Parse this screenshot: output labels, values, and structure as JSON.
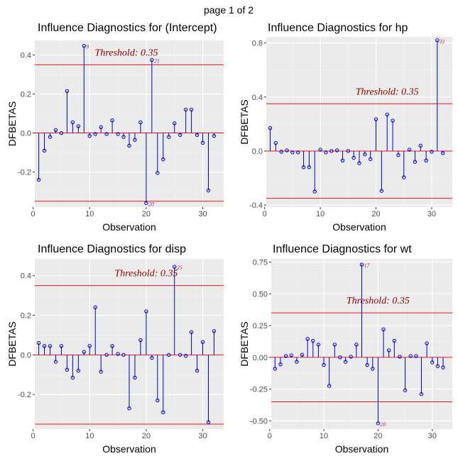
{
  "page_label": "page 1 of 2",
  "chart_data": [
    {
      "type": "lollipop",
      "title": "Influence Diagnostics for (Intercept)",
      "xlabel": "Observation",
      "ylabel": "DFBETAS",
      "xlim": [
        0.3,
        33.7
      ],
      "ylim": [
        -0.38,
        0.475
      ],
      "xticks": [
        0,
        10,
        20,
        30
      ],
      "yticks": [
        -0.2,
        0.0,
        0.2,
        0.4
      ],
      "ytick_labels": [
        "-0.2",
        "0.0",
        "0.2",
        "0.4"
      ],
      "threshold": 0.35,
      "threshold_label": "Threshold: 0.35",
      "threshold_label_x": 16.5,
      "values": [
        -0.24,
        -0.09,
        -0.02,
        0.015,
        0.0,
        0.215,
        0.055,
        0.035,
        0.447,
        -0.015,
        -0.005,
        0.03,
        -0.005,
        0.065,
        -0.005,
        -0.02,
        -0.065,
        -0.035,
        0.055,
        -0.36,
        0.375,
        -0.205,
        -0.135,
        -0.02,
        0.05,
        -0.01,
        0.12,
        0.12,
        -0.01,
        -0.05,
        -0.295,
        -0.015
      ],
      "influential": [
        9,
        20,
        21
      ]
    },
    {
      "type": "lollipop",
      "title": "Influence Diagnostics for hp",
      "xlabel": "Observation",
      "ylabel": "DFBETAS",
      "xlim": [
        0.3,
        33.7
      ],
      "ylim": [
        -0.415,
        0.845
      ],
      "xticks": [
        0,
        10,
        20,
        30
      ],
      "yticks": [
        -0.4,
        0.0,
        0.4,
        0.8
      ],
      "ytick_labels": [
        "-0.4",
        "0.0",
        "0.4",
        "0.8"
      ],
      "threshold": 0.35,
      "threshold_label": "Threshold: 0.35",
      "threshold_label_x": 22.0,
      "values": [
        0.17,
        0.06,
        -0.005,
        0.005,
        -0.01,
        -0.01,
        -0.12,
        -0.12,
        -0.3,
        0.01,
        -0.01,
        0.0,
        0.005,
        -0.07,
        0.0,
        -0.05,
        -0.09,
        -0.025,
        -0.06,
        0.235,
        -0.295,
        0.27,
        0.225,
        -0.03,
        -0.195,
        0.01,
        -0.08,
        0.04,
        -0.07,
        -0.005,
        0.82,
        -0.015
      ],
      "influential": [
        31
      ]
    },
    {
      "type": "lollipop",
      "title": "Influence Diagnostics for disp",
      "xlabel": "Observation",
      "ylabel": "DFBETAS",
      "xlim": [
        0.3,
        33.7
      ],
      "ylim": [
        -0.375,
        0.485
      ],
      "xticks": [
        0,
        10,
        20,
        30
      ],
      "yticks": [
        -0.2,
        0.0,
        0.2,
        0.4
      ],
      "ytick_labels": [
        "-0.2",
        "0.0",
        "0.2",
        "0.4"
      ],
      "threshold": 0.35,
      "threshold_label": "Threshold: 0.35",
      "threshold_label_x": 20.0,
      "values": [
        0.06,
        0.045,
        0.045,
        -0.035,
        0.045,
        -0.075,
        -0.115,
        -0.08,
        0.015,
        0.045,
        0.24,
        -0.085,
        0.0,
        0.045,
        0.005,
        0.0,
        -0.27,
        -0.115,
        0.075,
        0.22,
        -0.015,
        -0.23,
        -0.29,
        0.0,
        0.445,
        0.0,
        -0.005,
        0.115,
        -0.08,
        0.065,
        -0.34,
        0.12
      ],
      "influential": [
        25
      ]
    },
    {
      "type": "lollipop",
      "title": "Influence Diagnostics for wt",
      "xlabel": "Observation",
      "ylabel": "DFBETAS",
      "xlim": [
        0.3,
        33.7
      ],
      "ylim": [
        -0.565,
        0.775
      ],
      "xticks": [
        0,
        10,
        20,
        30
      ],
      "yticks": [
        -0.5,
        -0.25,
        0.0,
        0.25,
        0.5,
        0.75
      ],
      "ytick_labels": [
        "-0.50",
        "-0.25",
        "0.00",
        "0.25",
        "0.50",
        "0.75"
      ],
      "threshold": 0.35,
      "threshold_label": "Threshold: 0.35",
      "threshold_label_x": 20.0,
      "values": [
        -0.09,
        -0.055,
        0.01,
        0.015,
        -0.035,
        0.02,
        0.145,
        0.13,
        0.1,
        -0.06,
        -0.225,
        0.1,
        0.0,
        -0.035,
        0.005,
        0.1,
        0.73,
        -0.06,
        -0.09,
        -0.52,
        0.22,
        0.055,
        0.13,
        0.005,
        -0.26,
        0.01,
        0.01,
        -0.29,
        0.11,
        -0.04,
        -0.07,
        -0.08
      ],
      "influential": [
        17,
        20
      ]
    }
  ],
  "colors": {
    "panel_bg": "#ebebeb",
    "grid_major": "#ffffff",
    "grid_minor": "#f3f3f3",
    "stem": "#0000cd",
    "point": "#0000cd",
    "threshold_line": "#e31a1c",
    "zero_line": "#e31a1c",
    "threshold_text": "#8b0000",
    "obs_label": "#b03060",
    "axis_text": "#4d4d4d",
    "title_text": "#000000"
  }
}
